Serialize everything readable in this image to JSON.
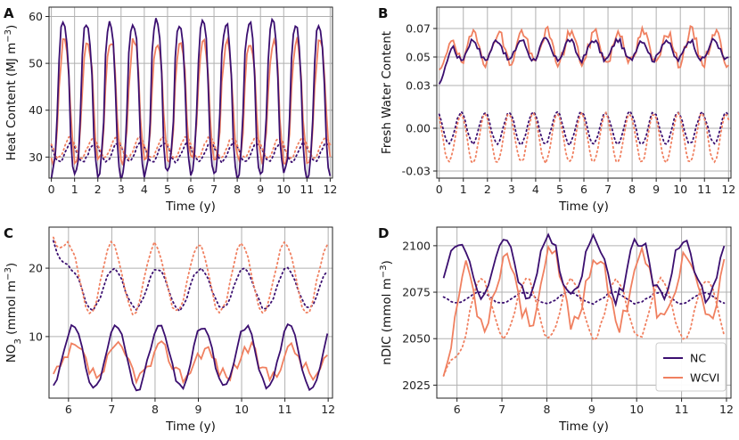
{
  "colors": {
    "NC": "#3b0f70",
    "WCVI": "#f08060",
    "grid": "#b0b0b0"
  },
  "legend": {
    "position": "bottom-right",
    "entries": [
      "NC",
      "WCVI"
    ]
  },
  "chart_data": [
    {
      "panel": "A",
      "type": "line",
      "xlabel": "Time (y)",
      "ylabel_main": "Heat Content (MJ m",
      "ylabel_sup": "−3",
      "ylabel_end": ")",
      "xlim": [
        -0.1,
        12.1
      ],
      "ylim": [
        25.5,
        62
      ],
      "xticks": [
        0,
        1,
        2,
        3,
        4,
        5,
        6,
        7,
        8,
        9,
        10,
        11,
        12
      ],
      "xtick_labels": [
        "0",
        "1",
        "2",
        "3",
        "4",
        "5",
        "6",
        "7",
        "8",
        "9",
        "10",
        "11",
        "12"
      ],
      "yticks": [
        30,
        40,
        50,
        60
      ],
      "ytick_labels": [
        "30",
        "40",
        "50",
        "60"
      ],
      "gen": {
        "NC": {
          "mean": 42.5,
          "amp": 16.5,
          "phase": 0.52,
          "sharp": 1.5,
          "noise": 1.2,
          "seed": 3,
          "start": 0,
          "end": 12
        },
        "WCVI": {
          "mean": 42.0,
          "amp": 13.0,
          "phase": 0.56,
          "sharp": 1.3,
          "noise": 1.2,
          "seed": 7,
          "start": 0,
          "end": 12
        },
        "NC_dotted": {
          "mean": 31.0,
          "amp": 2.0,
          "phase": 0.85,
          "sharp": 1.0,
          "noise": 0.3,
          "seed": 11,
          "start": 0,
          "end": 12
        },
        "WCVI_dotted": {
          "mean": 32.0,
          "amp": 2.2,
          "phase": 0.8,
          "sharp": 1.0,
          "noise": 0.3,
          "seed": 13,
          "start": 0,
          "end": 12
        }
      }
    },
    {
      "panel": "B",
      "type": "line",
      "xlabel": "Time (y)",
      "ylabel_main": "Fresh Water Content",
      "ylabel_sup": "",
      "ylabel_end": "",
      "xlim": [
        -0.1,
        12.1
      ],
      "ylim": [
        -0.035,
        0.085
      ],
      "xticks": [
        0,
        1,
        2,
        3,
        4,
        5,
        6,
        7,
        8,
        9,
        10,
        11,
        12
      ],
      "xtick_labels": [
        "0",
        "1",
        "2",
        "3",
        "4",
        "5",
        "6",
        "7",
        "8",
        "9",
        "10",
        "11",
        "12"
      ],
      "yticks": [
        -0.03,
        0.0,
        0.03,
        0.05,
        0.07
      ],
      "ytick_labels": [
        "-0.03",
        "0.00",
        "0.03",
        "0.05",
        "0.07"
      ],
      "gen": {
        "NC": {
          "mean": 0.055,
          "amp": 0.007,
          "phase": 0.4,
          "sharp": 1.0,
          "noise": 0.002,
          "seed": 17,
          "start": 0,
          "end": 12,
          "rampFrom": 0.031,
          "rampYears": 0.6
        },
        "WCVI": {
          "mean": 0.057,
          "amp": 0.011,
          "phase": 0.45,
          "sharp": 1.0,
          "noise": 0.004,
          "seed": 19,
          "start": 0,
          "end": 12,
          "rampFrom": 0.041,
          "rampYears": 0.6
        },
        "NC_dotted": {
          "mean": 0.0,
          "amp": 0.011,
          "phase": 0.9,
          "sharp": 1.0,
          "noise": 0.001,
          "seed": 23,
          "start": 0,
          "end": 12
        },
        "WCVI_dotted": {
          "mean": -0.007,
          "amp": 0.017,
          "phase": 0.9,
          "sharp": 1.0,
          "noise": 0.001,
          "seed": 29,
          "start": 0,
          "end": 12
        }
      }
    },
    {
      "panel": "C",
      "type": "line",
      "xlabel": "Time (y)",
      "ylabel_main": "NO",
      "ylabel_sub": "3",
      "ylabel_mid": " (mmol m",
      "ylabel_sup": "−3",
      "ylabel_end": ")",
      "xlim": [
        5.55,
        12.1
      ],
      "ylim": [
        1,
        26
      ],
      "xticks": [
        6,
        7,
        8,
        9,
        10,
        11,
        12
      ],
      "xtick_labels": [
        "6",
        "7",
        "8",
        "9",
        "10",
        "11",
        "12"
      ],
      "yticks": [
        10,
        20
      ],
      "ytick_labels": [
        "10",
        "20"
      ],
      "gen": {
        "NC": {
          "mean": 7.0,
          "amp": 4.5,
          "phase": 0.1,
          "sharp": 1.0,
          "noise": 0.5,
          "seed": 31,
          "start": 5.65,
          "end": 12
        },
        "WCVI": {
          "mean": 6.2,
          "amp": 2.0,
          "phase": 0.15,
          "sharp": 1.0,
          "noise": 1.2,
          "seed": 37,
          "start": 5.65,
          "end": 12
        },
        "NC_dotted": {
          "mean": 17.0,
          "amp": 3.0,
          "phase": 0.05,
          "sharp": 1.0,
          "noise": 0.3,
          "seed": 41,
          "start": 5.65,
          "end": 12,
          "rampFrom": 24.0,
          "rampYears": 0.4
        },
        "WCVI_dotted": {
          "mean": 18.5,
          "amp": 5.0,
          "phase": 0.0,
          "sharp": 1.0,
          "noise": 0.4,
          "seed": 43,
          "start": 5.65,
          "end": 12,
          "rampFrom": 24.5,
          "rampYears": 0.4
        }
      }
    },
    {
      "panel": "D",
      "type": "line",
      "xlabel": "Time (y)",
      "ylabel_main": "nDIC (mmol m",
      "ylabel_sup": "−3",
      "ylabel_end": ")",
      "xlim": [
        5.55,
        12.1
      ],
      "ylim": [
        2018,
        2110
      ],
      "xticks": [
        6,
        7,
        8,
        9,
        10,
        11,
        12
      ],
      "xtick_labels": [
        "6",
        "7",
        "8",
        "9",
        "10",
        "11",
        "12"
      ],
      "yticks": [
        2025,
        2050,
        2075,
        2100
      ],
      "ytick_labels": [
        "2025",
        "2050",
        "2075",
        "2100"
      ],
      "gen": {
        "NC": {
          "mean": 2088,
          "amp": 16,
          "phase": 0.05,
          "sharp": 1.0,
          "noise": 4,
          "seed": 47,
          "start": 5.7,
          "end": 12
        },
        "WCVI": {
          "mean": 2077,
          "amp": 18,
          "phase": 0.1,
          "sharp": 1.0,
          "noise": 6,
          "seed": 53,
          "start": 5.7,
          "end": 12,
          "rampFrom": 2030,
          "rampYears": 0.5
        },
        "NC_dotted": {
          "mean": 2072,
          "amp": 3,
          "phase": 0.5,
          "sharp": 1.0,
          "noise": 0.5,
          "seed": 59,
          "start": 5.7,
          "end": 12
        },
        "WCVI_dotted": {
          "mean": 2066,
          "amp": 16,
          "phase": 0.55,
          "sharp": 1.0,
          "noise": 1.5,
          "seed": 61,
          "start": 5.7,
          "end": 12,
          "rampFrom": 2030,
          "rampYears": 0.6
        }
      }
    }
  ]
}
